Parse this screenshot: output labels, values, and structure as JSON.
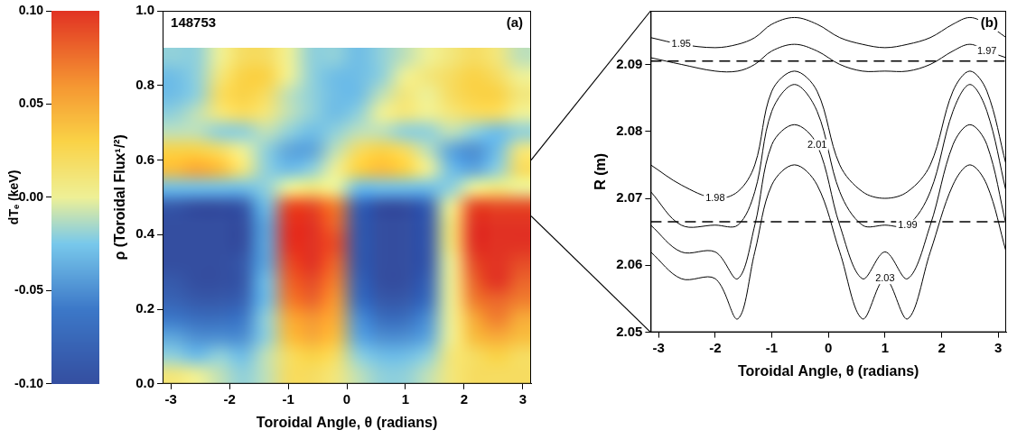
{
  "chart_data": [
    {
      "type": "heatmap",
      "panel_label": "(a)",
      "annotation": "148753",
      "x_label": "Toroidal Angle, θ (radians)",
      "y_label": "ρ (Toroidal Flux¹/²)",
      "xlim": [
        -3.14,
        3.14
      ],
      "xticks": [
        -3,
        -2,
        -1,
        0,
        1,
        2,
        3
      ],
      "ylim": [
        0,
        1
      ],
      "yticks": [
        {
          "value": 0,
          "label": "0.0"
        },
        0.2,
        0.4,
        0.6,
        0.8,
        {
          "value": 1,
          "label": "1.0"
        }
      ],
      "grid": false,
      "x": [
        -2.95,
        -2.55,
        -2.16,
        -1.77,
        -1.37,
        -0.98,
        -0.59,
        -0.2,
        0.2,
        0.59,
        0.98,
        1.37,
        1.77,
        2.16,
        2.55,
        2.95
      ],
      "y": [
        0.025,
        0.075,
        0.125,
        0.175,
        0.225,
        0.275,
        0.325,
        0.375,
        0.425,
        0.475,
        0.525,
        0.575,
        0.625,
        0.675,
        0.725,
        0.775,
        0.825,
        0.875
      ],
      "cells": [
        [
          0.01,
          0,
          -0.01,
          -0.02,
          -0.01,
          0.02,
          0.02,
          0.01,
          -0.01,
          -0.02,
          -0.02,
          -0.01,
          0.01,
          0.02,
          0.02,
          0.02
        ],
        [
          -0.02,
          -0.03,
          -0.02,
          -0.03,
          -0.01,
          0.02,
          0.03,
          0.02,
          -0.02,
          -0.03,
          -0.03,
          -0.02,
          0.01,
          0.02,
          0.03,
          0.02
        ],
        [
          -0.04,
          -0.05,
          -0.05,
          -0.05,
          -0.02,
          0.04,
          0.05,
          0.04,
          -0.04,
          -0.05,
          -0.05,
          -0.04,
          0,
          0.04,
          0.05,
          0.04
        ],
        [
          -0.06,
          -0.07,
          -0.07,
          -0.06,
          -0.02,
          0.05,
          0.06,
          0.05,
          -0.05,
          -0.07,
          -0.07,
          -0.05,
          0,
          0.05,
          0.07,
          0.05
        ],
        [
          -0.08,
          -0.09,
          -0.09,
          -0.08,
          -0.03,
          0.07,
          0.08,
          0.06,
          -0.07,
          -0.09,
          -0.09,
          -0.07,
          0,
          0.07,
          0.08,
          0.07
        ],
        [
          -0.09,
          -0.1,
          -0.1,
          -0.09,
          -0.03,
          0.08,
          0.09,
          0.07,
          -0.08,
          -0.1,
          -0.1,
          -0.08,
          0,
          0.08,
          0.1,
          0.08
        ],
        [
          -0.1,
          -0.1,
          -0.1,
          -0.09,
          -0.04,
          0.09,
          0.1,
          0.08,
          -0.09,
          -0.1,
          -0.1,
          -0.09,
          0,
          0.09,
          0.1,
          0.09
        ],
        [
          -0.1,
          -0.1,
          -0.1,
          -0.1,
          -0.04,
          0.1,
          0.1,
          0.09,
          -0.09,
          -0.1,
          -0.1,
          -0.09,
          0.01,
          0.1,
          0.1,
          0.1
        ],
        [
          -0.1,
          -0.1,
          -0.1,
          -0.1,
          -0.04,
          0.1,
          0.1,
          0.08,
          -0.09,
          -0.1,
          -0.1,
          -0.09,
          0.01,
          0.1,
          0.1,
          0.1
        ],
        [
          -0.09,
          -0.1,
          -0.1,
          -0.09,
          -0.03,
          0.09,
          0.09,
          0.07,
          -0.08,
          -0.1,
          -0.1,
          -0.08,
          0,
          0.09,
          0.09,
          0.09
        ],
        [
          -0.03,
          -0.03,
          -0.03,
          -0.03,
          -0.02,
          0,
          0.01,
          0,
          -0.03,
          -0.03,
          -0.03,
          -0.03,
          -0.02,
          0,
          0.01,
          0
        ],
        [
          0.04,
          0.05,
          0.04,
          0.01,
          -0.02,
          -0.03,
          -0.02,
          0,
          0.03,
          0.04,
          0.03,
          0,
          -0.03,
          -0.04,
          -0.02,
          0.02
        ],
        [
          0.03,
          0.03,
          0.02,
          0,
          -0.02,
          -0.04,
          -0.04,
          -0.01,
          0.02,
          0.03,
          0.02,
          -0.01,
          -0.04,
          -0.05,
          -0.03,
          0.01
        ],
        [
          -0.01,
          -0.01,
          -0.02,
          -0.02,
          -0.01,
          -0.02,
          -0.03,
          -0.02,
          -0.01,
          -0.01,
          -0.02,
          -0.02,
          -0.01,
          -0.02,
          -0.03,
          -0.02
        ],
        [
          -0.02,
          -0.01,
          0.01,
          0.02,
          0.01,
          -0.01,
          -0.02,
          -0.03,
          -0.02,
          0,
          0.01,
          0,
          0.01,
          0.02,
          0.02,
          0
        ],
        [
          -0.03,
          -0.02,
          0.02,
          0.03,
          0.02,
          -0.01,
          -0.02,
          -0.03,
          -0.03,
          -0.01,
          0.01,
          0,
          0.02,
          0.03,
          0.03,
          0.01
        ],
        [
          -0.03,
          -0.02,
          0.01,
          0.03,
          0.03,
          0,
          -0.02,
          -0.03,
          -0.03,
          -0.02,
          0,
          0.01,
          0.02,
          0.03,
          0.02,
          0
        ],
        [
          -0.02,
          -0.02,
          0,
          0.02,
          0.02,
          0,
          -0.02,
          -0.02,
          -0.03,
          -0.02,
          -0.01,
          0,
          0.01,
          0.02,
          0.01,
          -0.01
        ]
      ],
      "colorbar": {
        "label": "dTₑ (keV)",
        "range": [
          -0.1,
          0.1
        ],
        "ticks": [
          {
            "value": -0.1,
            "label": "-0.10"
          },
          -0.05,
          {
            "value": 0,
            "label": "0.00"
          },
          0.05,
          {
            "value": 0.1,
            "label": "0.10"
          }
        ]
      },
      "zoom_range": [
        0.45,
        0.6
      ]
    },
    {
      "type": "contour",
      "panel_label": "(b)",
      "x_label": "Toroidal Angle, θ (radians)",
      "y_label": "R (m)",
      "xlim": [
        -3.14,
        3.14
      ],
      "xticks": [
        -3,
        -2,
        -1,
        0,
        1,
        2,
        3
      ],
      "ylim": [
        2.05,
        2.098
      ],
      "yticks": [
        2.05,
        2.06,
        2.07,
        2.08,
        2.09
      ],
      "grid": false,
      "x": [
        -3.14,
        -2.6,
        -2.0,
        -1.6,
        -1.3,
        -1.0,
        -0.6,
        -0.2,
        0.2,
        0.6,
        1.0,
        1.4,
        1.8,
        2.2,
        2.5,
        2.8,
        3.14
      ],
      "contours": [
        {
          "level": 1.95,
          "values": [
            2.094,
            2.093,
            2.0925,
            2.093,
            2.094,
            2.096,
            2.097,
            2.096,
            2.094,
            2.093,
            2.0925,
            2.093,
            2.094,
            2.096,
            2.097,
            2.096,
            2.094
          ]
        },
        {
          "level": 1.97,
          "values": [
            2.091,
            2.09,
            2.089,
            2.089,
            2.09,
            2.092,
            2.093,
            2.092,
            2.09,
            2.089,
            2.089,
            2.089,
            2.09,
            2.092,
            2.093,
            2.092,
            2.091
          ]
        },
        {
          "level": 1.98,
          "values": [
            2.075,
            2.072,
            2.07,
            2.071,
            2.075,
            2.086,
            2.089,
            2.086,
            2.075,
            2.071,
            2.07,
            2.071,
            2.075,
            2.086,
            2.089,
            2.086,
            2.075
          ]
        },
        {
          "level": 1.99,
          "values": [
            2.071,
            2.066,
            2.066,
            2.066,
            2.071,
            2.083,
            2.087,
            2.083,
            2.071,
            2.066,
            2.066,
            2.066,
            2.071,
            2.083,
            2.087,
            2.083,
            2.071
          ]
        },
        {
          "level": 2.01,
          "values": [
            2.066,
            2.062,
            2.062,
            2.058,
            2.066,
            2.078,
            2.081,
            2.078,
            2.066,
            2.058,
            2.062,
            2.058,
            2.066,
            2.078,
            2.081,
            2.078,
            2.066
          ]
        },
        {
          "level": 2.03,
          "values": [
            2.062,
            2.058,
            2.058,
            2.052,
            2.062,
            2.072,
            2.075,
            2.072,
            2.062,
            2.052,
            2.058,
            2.052,
            2.062,
            2.072,
            2.075,
            2.072,
            2.062
          ]
        }
      ],
      "reference_lines": [
        2.0905,
        2.0665
      ],
      "line_style": "dashed"
    }
  ]
}
